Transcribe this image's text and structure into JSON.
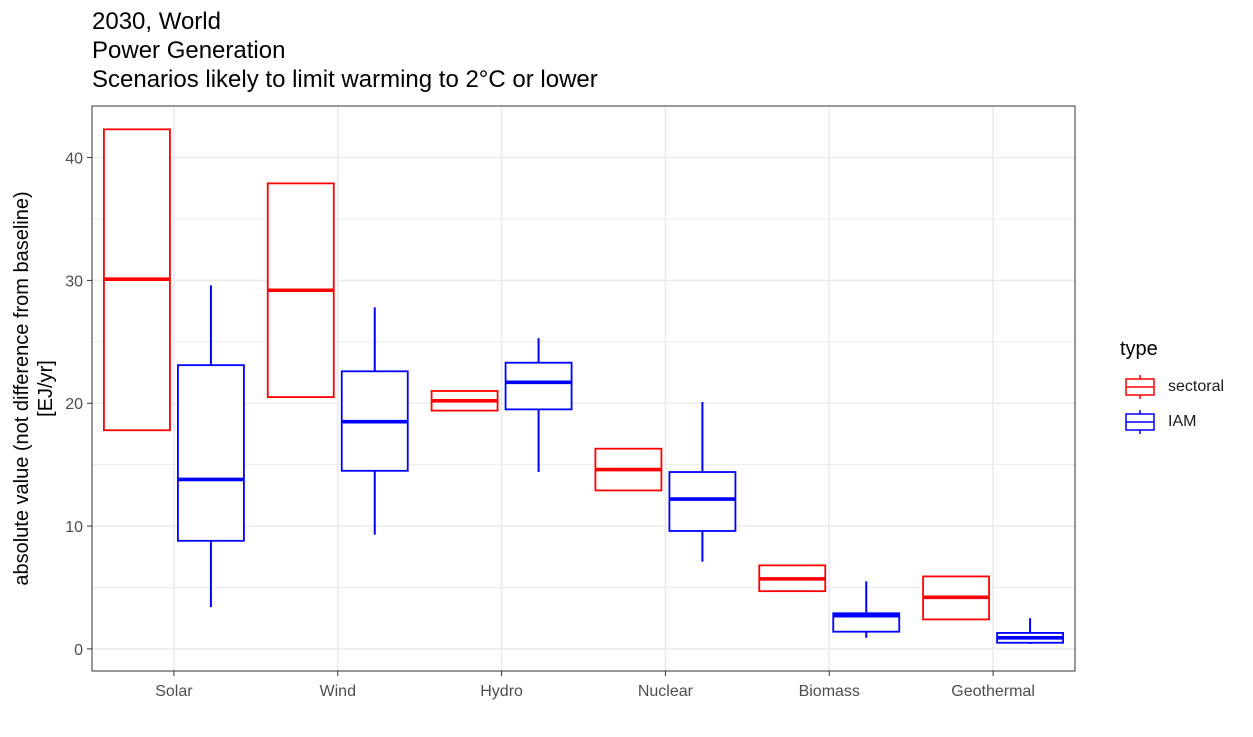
{
  "title_lines": [
    "2030, World",
    "Power Generation",
    "Scenarios likely to limit warming to 2°C or lower"
  ],
  "legend": {
    "title": "type",
    "items": [
      {
        "label": "sectoral",
        "color": "#FF0000"
      },
      {
        "label": "IAM",
        "color": "#0000FF"
      }
    ]
  },
  "chart_data": {
    "type": "boxplot",
    "title": "2030, World\nPower Generation\nScenarios likely to limit warming to 2°C or lower",
    "xlabel": "",
    "ylabel": "absolute value (not difference from baseline)\n[EJ/yr]",
    "ylim": [
      -1.8,
      44.2
    ],
    "yticks": [
      0,
      10,
      20,
      30,
      40
    ],
    "categories": [
      "Solar",
      "Wind",
      "Hydro",
      "Nuclear",
      "Biomass",
      "Geothermal"
    ],
    "grid": true,
    "legend_position": "right",
    "series": [
      {
        "name": "sectoral",
        "color": "#FF0000",
        "boxes": [
          {
            "min": 17.8,
            "q1": 17.8,
            "median": 30.1,
            "q3": 42.3,
            "max": 42.3
          },
          {
            "min": 20.5,
            "q1": 20.5,
            "median": 29.2,
            "q3": 37.9,
            "max": 37.9
          },
          {
            "min": 19.4,
            "q1": 19.4,
            "median": 20.2,
            "q3": 21.0,
            "max": 21.0
          },
          {
            "min": 12.9,
            "q1": 12.9,
            "median": 14.6,
            "q3": 16.3,
            "max": 16.3
          },
          {
            "min": 4.7,
            "q1": 4.7,
            "median": 5.7,
            "q3": 6.8,
            "max": 6.8
          },
          {
            "min": 2.4,
            "q1": 2.4,
            "median": 4.2,
            "q3": 5.9,
            "max": 5.9
          }
        ]
      },
      {
        "name": "IAM",
        "color": "#0000FF",
        "boxes": [
          {
            "min": 3.4,
            "q1": 8.8,
            "median": 13.8,
            "q3": 23.1,
            "max": 29.6
          },
          {
            "min": 9.3,
            "q1": 14.5,
            "median": 18.5,
            "q3": 22.6,
            "max": 27.8
          },
          {
            "min": 14.4,
            "q1": 19.5,
            "median": 21.7,
            "q3": 23.3,
            "max": 25.3
          },
          {
            "min": 7.1,
            "q1": 9.6,
            "median": 12.2,
            "q3": 14.4,
            "max": 20.1
          },
          {
            "min": 0.9,
            "q1": 1.4,
            "median": 2.7,
            "q3": 2.9,
            "max": 5.5
          },
          {
            "min": 0.4,
            "q1": 0.5,
            "median": 0.9,
            "q3": 1.3,
            "max": 2.5
          }
        ]
      }
    ]
  }
}
